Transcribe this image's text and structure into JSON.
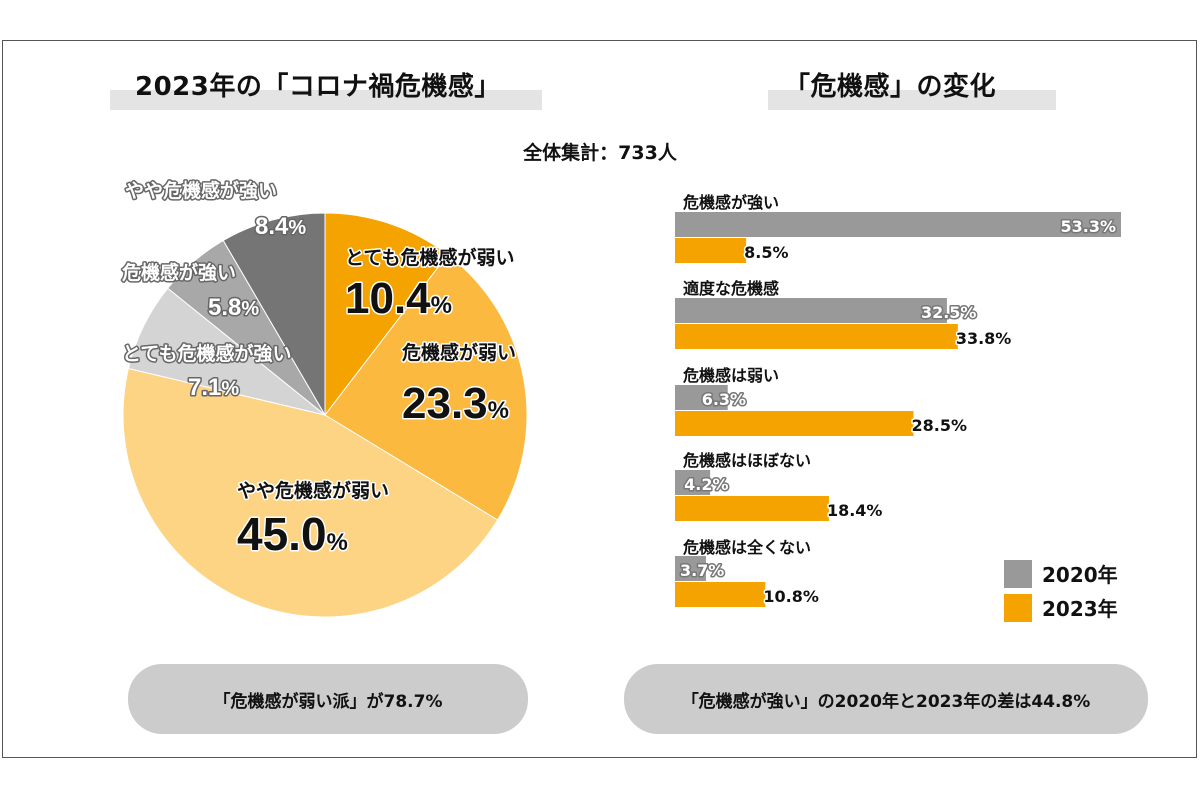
{
  "left_panel": {
    "title": "2023年の「コロナ禍危機感」",
    "footer": "「危機感が弱い派」が78.7%"
  },
  "right_panel": {
    "title": "「危機感」の変化",
    "footer": "「危機感が強い」の2020年と2023年の差は44.8%"
  },
  "subtitle": "全体集計：733人",
  "colors": {
    "gray_2020": "#999999",
    "orange_2023": "#f5a300",
    "title_bg": "#e4e4e4",
    "pill_bg": "#cccccc"
  },
  "chart_data": [
    {
      "type": "pie",
      "title": "2023年の「コロナ禍危機感」",
      "unit": "%",
      "slices": [
        {
          "label": "とても危機感が弱い",
          "value": 10.4,
          "color": "#f5a300"
        },
        {
          "label": "危機感が弱い",
          "value": 23.3,
          "color": "#fbb940"
        },
        {
          "label": "やや危機感が弱い",
          "value": 45.0,
          "color": "#fdd384"
        },
        {
          "label": "とても危機感が強い",
          "value": 7.1,
          "color": "#d4d4d4"
        },
        {
          "label": "危機感が強い",
          "value": 5.8,
          "color": "#a8a8a8"
        },
        {
          "label": "やや危機感が強い",
          "value": 8.4,
          "color": "#757575"
        }
      ]
    },
    {
      "type": "bar",
      "orientation": "horizontal",
      "title": "「危機感」の変化",
      "categories": [
        "危機感が強い",
        "適度な危機感",
        "危機感は弱い",
        "危機感はほぼない",
        "危機感は全くない"
      ],
      "series": [
        {
          "name": "2020年",
          "values": [
            53.3,
            32.5,
            6.3,
            4.2,
            3.7
          ],
          "color": "#999999"
        },
        {
          "name": "2023年",
          "values": [
            8.5,
            33.8,
            28.5,
            18.4,
            10.8
          ],
          "color": "#f5a300"
        }
      ],
      "value_labels": {
        "2020年": [
          "53.3%",
          "32.5%",
          "6.3%",
          "4.2%",
          "3.7%"
        ],
        "2023年": [
          "8.5%",
          "33.8%",
          "28.5%",
          "18.4%",
          "10.8%"
        ]
      },
      "legend_position": "bottom-right"
    }
  ]
}
